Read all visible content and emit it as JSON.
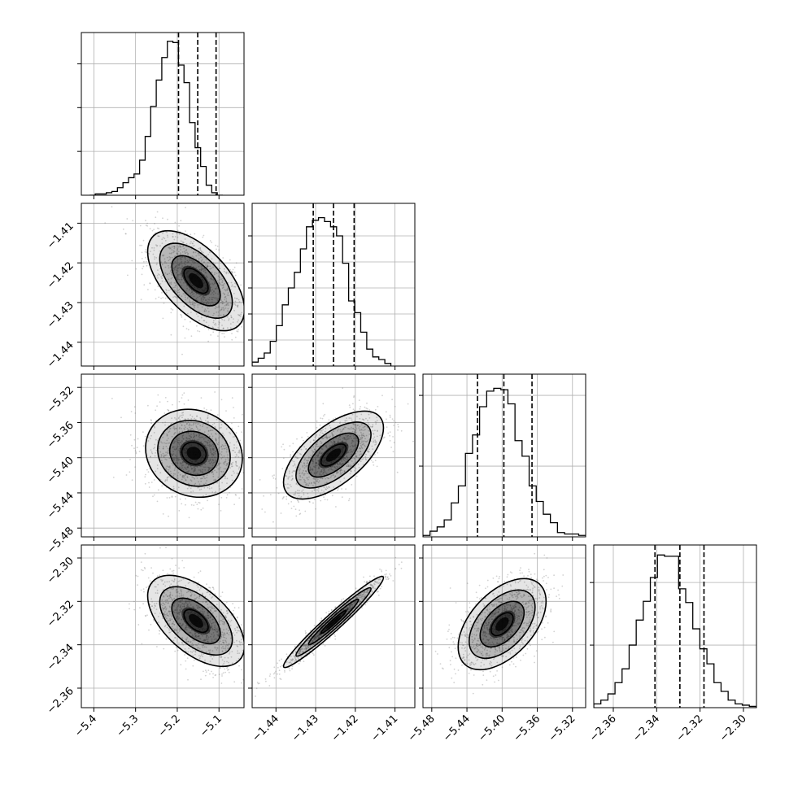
{
  "chart_data": [
    {
      "type": "histogram",
      "panel": "row1-col1",
      "variable_index": 0,
      "xlim": [
        -5.43,
        -5.04
      ],
      "ylim": [
        0,
        0.13
      ],
      "bin_edges_start": -5.41,
      "bin_width": 0.0133,
      "values": [
        0.0,
        0.001,
        0.001,
        0.002,
        0.003,
        0.006,
        0.01,
        0.014,
        0.017,
        0.028,
        0.047,
        0.071,
        0.092,
        0.11,
        0.123,
        0.122,
        0.104,
        0.09,
        0.058,
        0.038,
        0.023,
        0.008,
        0.002,
        0.0
      ],
      "quantile_lines": [
        -5.197,
        -5.151,
        -5.107
      ],
      "yticks": [
        0.035,
        0.07,
        0.105
      ],
      "xtick_labels": [],
      "ytick_labels": []
    },
    {
      "type": "histogram",
      "panel": "row2-col2",
      "variable_index": 1,
      "xlim": [
        -1.446,
        -1.405
      ],
      "ylim": [
        0,
        0.125
      ],
      "bin_edges_start": -1.446,
      "bin_width": 0.00152,
      "values": [
        0.003,
        0.006,
        0.01,
        0.019,
        0.031,
        0.047,
        0.06,
        0.072,
        0.09,
        0.107,
        0.112,
        0.114,
        0.111,
        0.107,
        0.1,
        0.079,
        0.05,
        0.041,
        0.026,
        0.013,
        0.007,
        0.005,
        0.002
      ],
      "quantile_lines": [
        -1.4306,
        -1.4255,
        -1.4203
      ],
      "yticks": [
        0.02,
        0.04,
        0.06,
        0.08,
        0.1
      ],
      "xtick_labels": [],
      "ytick_labels": []
    },
    {
      "type": "histogram",
      "panel": "row3-col3",
      "variable_index": 2,
      "xlim": [
        -5.49,
        -5.305
      ],
      "ylim": [
        0,
        0.115
      ],
      "bin_edges_start": -5.49,
      "bin_width": 0.00805,
      "values": [
        0.001,
        0.004,
        0.007,
        0.012,
        0.024,
        0.036,
        0.059,
        0.072,
        0.092,
        0.103,
        0.105,
        0.104,
        0.094,
        0.068,
        0.057,
        0.036,
        0.025,
        0.016,
        0.01,
        0.003,
        0.002,
        0.002,
        0.001
      ],
      "quantile_lines": [
        -5.428,
        -5.398,
        -5.366
      ],
      "yticks": [
        0.05,
        0.1
      ],
      "xtick_labels": [],
      "ytick_labels": []
    },
    {
      "type": "histogram",
      "panel": "row4-col4",
      "variable_index": 3,
      "xlim": [
        -2.369,
        -2.294
      ],
      "ylim": [
        0,
        0.13
      ],
      "bin_edges_start": -2.369,
      "bin_width": 0.00326,
      "values": [
        0.003,
        0.006,
        0.011,
        0.02,
        0.031,
        0.05,
        0.07,
        0.085,
        0.104,
        0.122,
        0.121,
        0.121,
        0.095,
        0.084,
        0.063,
        0.047,
        0.035,
        0.02,
        0.013,
        0.006,
        0.003,
        0.002,
        0.001
      ],
      "quantile_lines": [
        -2.3408,
        -2.3293,
        -2.3182
      ],
      "yticks": [
        0.05,
        0.1
      ],
      "xtick_labels": [
        "−2.36",
        "−2.34",
        "−2.32",
        "−2.30"
      ],
      "ytick_labels": []
    },
    {
      "type": "contour",
      "panel": "row2-col1",
      "x_variable": 0,
      "y_variable": 1,
      "xlim": [
        -5.43,
        -5.04
      ],
      "ylim": [
        -1.446,
        -1.405
      ],
      "center": [
        -5.155,
        -1.4245
      ],
      "sigma": [
        0.058,
        0.0063
      ],
      "rho": -0.58,
      "xtick_labels": [],
      "ytick_labels": [
        "−1.41",
        "−1.42",
        "−1.43",
        "−1.44"
      ]
    },
    {
      "type": "contour",
      "panel": "row3-col1",
      "x_variable": 0,
      "y_variable": 2,
      "xlim": [
        -5.43,
        -5.04
      ],
      "ylim": [
        -5.49,
        -5.305
      ],
      "center": [
        -5.16,
        -5.395
      ],
      "sigma": [
        0.058,
        0.025
      ],
      "rho": -0.12,
      "xtick_labels": [],
      "ytick_labels": [
        "−5.32",
        "−5.36",
        "−5.40",
        "−5.44",
        "−5.48"
      ]
    },
    {
      "type": "contour",
      "panel": "row3-col2",
      "x_variable": 1,
      "y_variable": 2,
      "xlim": [
        -1.446,
        -1.405
      ],
      "ylim": [
        -5.49,
        -5.305
      ],
      "center": [
        -1.4255,
        -5.397
      ],
      "sigma": [
        0.0063,
        0.025
      ],
      "rho": 0.62,
      "xtick_labels": [],
      "ytick_labels": []
    },
    {
      "type": "contour",
      "panel": "row4-col1",
      "x_variable": 0,
      "y_variable": 3,
      "xlim": [
        -5.43,
        -5.04
      ],
      "ylim": [
        -2.369,
        -2.294
      ],
      "center": [
        -5.155,
        -2.329
      ],
      "sigma": [
        0.058,
        0.0105
      ],
      "rho": -0.55,
      "xtick_labels": [
        "−5.4",
        "−5.3",
        "−5.2",
        "−5.1"
      ],
      "ytick_labels": [
        "−2.30",
        "−2.32",
        "−2.34",
        "−2.36"
      ]
    },
    {
      "type": "contour",
      "panel": "row4-col2",
      "x_variable": 1,
      "y_variable": 3,
      "xlim": [
        -1.446,
        -1.405
      ],
      "ylim": [
        -2.369,
        -2.294
      ],
      "center": [
        -1.4255,
        -2.3295
      ],
      "sigma": [
        0.0063,
        0.0105
      ],
      "rho": 0.97,
      "xtick_labels": [
        "−1.44",
        "−1.43",
        "−1.42",
        "−1.41"
      ],
      "ytick_labels": []
    },
    {
      "type": "contour",
      "panel": "row4-col3",
      "x_variable": 2,
      "y_variable": 3,
      "xlim": [
        -5.49,
        -5.305
      ],
      "ylim": [
        -2.369,
        -2.294
      ],
      "center": [
        -5.4,
        -2.3305
      ],
      "sigma": [
        0.025,
        0.0105
      ],
      "rho": 0.5,
      "xtick_labels": [
        "−5.48",
        "−5.44",
        "−5.40",
        "−5.36",
        "−5.32"
      ],
      "ytick_labels": []
    }
  ],
  "tick_values": {
    "v0": [
      -5.4,
      -5.3,
      -5.2,
      -5.1
    ],
    "v1": [
      -1.44,
      -1.43,
      -1.42,
      -1.41
    ],
    "v2": [
      -5.48,
      -5.44,
      -5.4,
      -5.36,
      -5.32
    ],
    "v3": [
      -2.36,
      -2.34,
      -2.32,
      -2.3
    ]
  },
  "colors": {
    "frame": "#000000",
    "grid": "#b0b0b0",
    "points": "#7f7f7f",
    "density": "#000000"
  }
}
